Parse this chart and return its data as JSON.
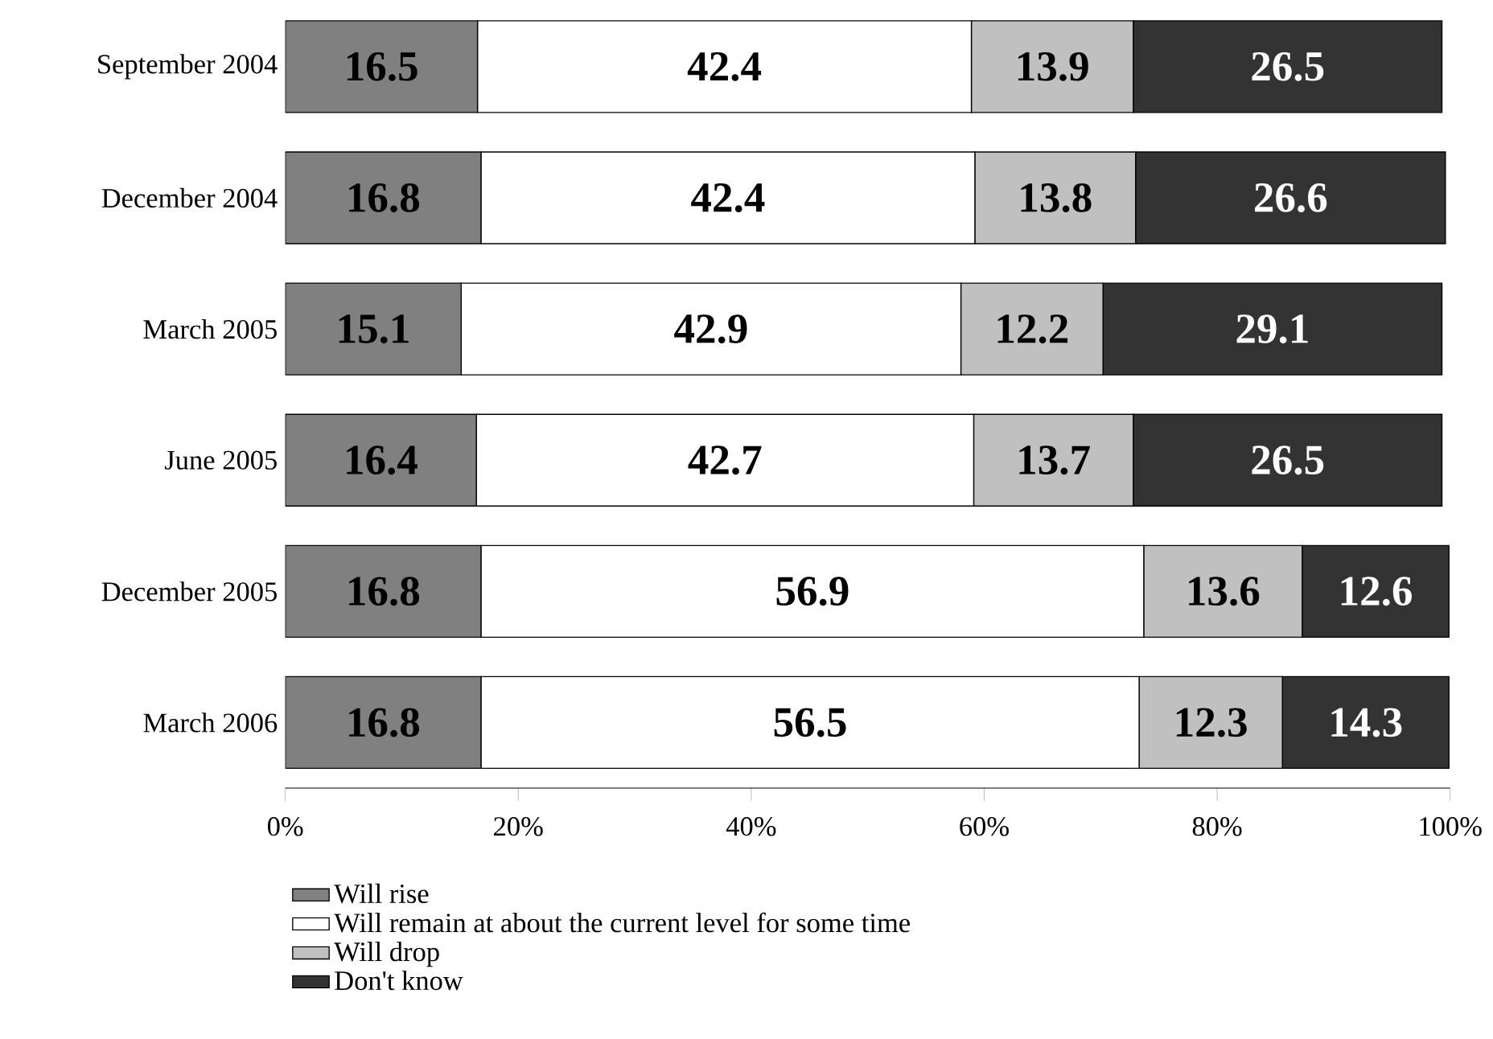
{
  "chart_data": {
    "type": "bar",
    "orientation": "horizontal",
    "stacked": true,
    "data_labels": true,
    "legend": "bottom",
    "categories": [
      "September 2004",
      "December 2004",
      "March 2005",
      "June 2005",
      "December 2005",
      "March 2006"
    ],
    "series": [
      {
        "name": "Will rise",
        "color": "#808080",
        "values": [
          16.5,
          16.8,
          15.1,
          16.4,
          16.8,
          16.8
        ]
      },
      {
        "name": "Will remain at about the current level for some time",
        "color": "#ffffff",
        "values": [
          42.4,
          42.4,
          42.9,
          42.7,
          56.9,
          56.5
        ]
      },
      {
        "name": "Will drop",
        "color": "#c0c0c0",
        "values": [
          13.9,
          13.8,
          12.2,
          13.7,
          13.6,
          12.3
        ]
      },
      {
        "name": "Don't know",
        "color": "#333333",
        "values": [
          26.5,
          26.6,
          29.1,
          26.5,
          12.6,
          14.3
        ]
      }
    ],
    "xlim": [
      0,
      100
    ],
    "xticks": [
      {
        "value": 0,
        "label": "0%"
      },
      {
        "value": 20,
        "label": "20%"
      },
      {
        "value": 40,
        "label": "40%"
      },
      {
        "value": 60,
        "label": "60%"
      },
      {
        "value": 80,
        "label": "80%"
      },
      {
        "value": 100,
        "label": "100%"
      }
    ]
  }
}
